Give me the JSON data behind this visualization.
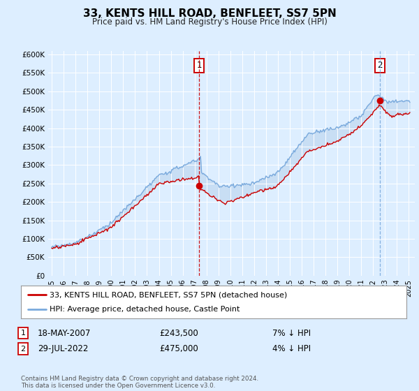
{
  "title": "33, KENTS HILL ROAD, BENFLEET, SS7 5PN",
  "subtitle": "Price paid vs. HM Land Registry's House Price Index (HPI)",
  "ylabel_ticks": [
    "£0",
    "£50K",
    "£100K",
    "£150K",
    "£200K",
    "£250K",
    "£300K",
    "£350K",
    "£400K",
    "£450K",
    "£500K",
    "£550K",
    "£600K"
  ],
  "ytick_values": [
    0,
    50000,
    100000,
    150000,
    200000,
    250000,
    300000,
    350000,
    400000,
    450000,
    500000,
    550000,
    600000
  ],
  "ylim": [
    0,
    610000
  ],
  "xlim_start": 1994.7,
  "xlim_end": 2025.5,
  "hpi_color": "#7aaadd",
  "price_color": "#cc0000",
  "bg_color": "#ddeeff",
  "plot_bg": "#ddeeff",
  "fill_color": "#c0d8f0",
  "legend_label_price": "33, KENTS HILL ROAD, BENFLEET, SS7 5PN (detached house)",
  "legend_label_hpi": "HPI: Average price, detached house, Castle Point",
  "sale1_date": 2007.37,
  "sale1_price": 243500,
  "sale2_date": 2022.55,
  "sale2_price": 475000,
  "footer": "Contains HM Land Registry data © Crown copyright and database right 2024.\nThis data is licensed under the Open Government Licence v3.0.",
  "xticks": [
    1995,
    1996,
    1997,
    1998,
    1999,
    2000,
    2001,
    2002,
    2003,
    2004,
    2005,
    2006,
    2007,
    2008,
    2009,
    2010,
    2011,
    2012,
    2013,
    2014,
    2015,
    2016,
    2017,
    2018,
    2019,
    2020,
    2021,
    2022,
    2023,
    2024,
    2025
  ]
}
